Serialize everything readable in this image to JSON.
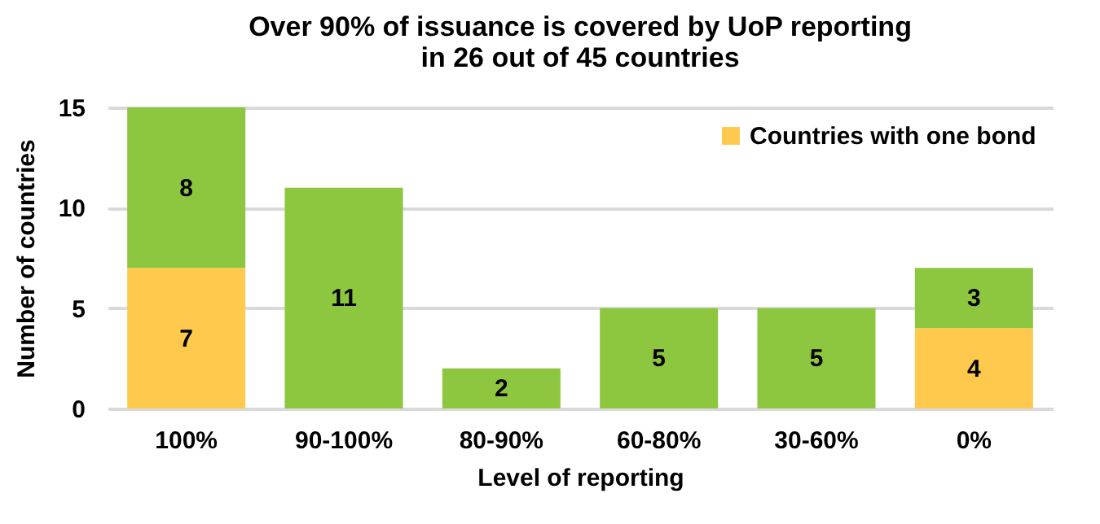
{
  "chart_data": {
    "type": "bar",
    "title": "Over 90% of issuance is covered by UoP reporting\nin 26 out of 45 countries",
    "xlabel": "Level of reporting",
    "ylabel": "Number of countries",
    "categories": [
      "100%",
      "90-100%",
      "80-90%",
      "60-80%",
      "30-60%",
      "0%"
    ],
    "series": [
      {
        "name": "Countries with one bond",
        "color": "#ffc94d",
        "values": [
          7,
          null,
          null,
          null,
          null,
          4
        ]
      },
      {
        "color": "#8dc63f",
        "values": [
          8,
          11,
          2,
          5,
          5,
          3
        ]
      }
    ],
    "stacked": true,
    "ylim": [
      0,
      15
    ],
    "yticks": [
      0,
      5,
      10,
      15
    ],
    "grid": "y",
    "legend": "top right",
    "data_labels": true
  }
}
